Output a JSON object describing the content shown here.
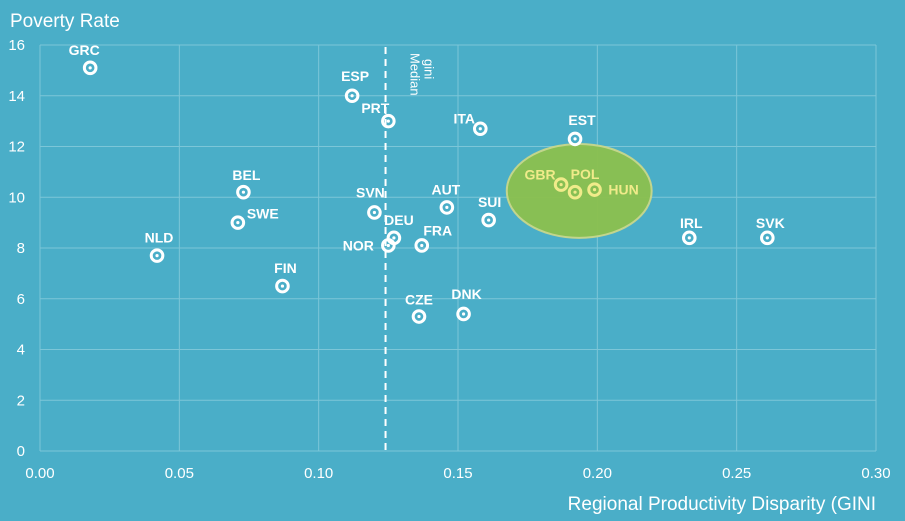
{
  "chart_data": {
    "type": "scatter",
    "title": "Poverty Rate",
    "xlabel": "Regional Productivity Disparity (GINI",
    "xlim": [
      0,
      0.3
    ],
    "ylim": [
      0,
      16
    ],
    "x_ticks": [
      "0.00",
      "0.05",
      "0.10",
      "0.15",
      "0.20",
      "0.25",
      "0.30"
    ],
    "y_ticks": [
      "0",
      "2",
      "4",
      "6",
      "8",
      "10",
      "12",
      "14",
      "16"
    ],
    "grid": true,
    "points": [
      {
        "label": "GRC",
        "x": 0.018,
        "y": 15.1
      },
      {
        "label": "NLD",
        "x": 0.042,
        "y": 7.7
      },
      {
        "label": "SWE",
        "x": 0.071,
        "y": 9.0
      },
      {
        "label": "BEL",
        "x": 0.073,
        "y": 10.2
      },
      {
        "label": "FIN",
        "x": 0.087,
        "y": 6.5
      },
      {
        "label": "ESP",
        "x": 0.112,
        "y": 14.0
      },
      {
        "label": "SVN",
        "x": 0.12,
        "y": 9.4
      },
      {
        "label": "PRT",
        "x": 0.125,
        "y": 13.0
      },
      {
        "label": "NOR",
        "x": 0.125,
        "y": 8.1
      },
      {
        "label": "DEU",
        "x": 0.127,
        "y": 8.4
      },
      {
        "label": "CZE",
        "x": 0.136,
        "y": 5.3
      },
      {
        "label": "FRA",
        "x": 0.137,
        "y": 8.1
      },
      {
        "label": "AUT",
        "x": 0.146,
        "y": 9.6
      },
      {
        "label": "DNK",
        "x": 0.152,
        "y": 5.4
      },
      {
        "label": "ITA",
        "x": 0.158,
        "y": 12.7
      },
      {
        "label": "SUI",
        "x": 0.161,
        "y": 9.1
      },
      {
        "label": "GBR",
        "x": 0.187,
        "y": 10.5,
        "highlight": true
      },
      {
        "label": "POL",
        "x": 0.192,
        "y": 10.2,
        "highlight": true
      },
      {
        "label": "EST",
        "x": 0.192,
        "y": 12.3
      },
      {
        "label": "HUN",
        "x": 0.199,
        "y": 10.3,
        "highlight": true
      },
      {
        "label": "IRL",
        "x": 0.233,
        "y": 8.4
      },
      {
        "label": "SVK",
        "x": 0.261,
        "y": 8.4
      }
    ],
    "median_line": {
      "x": 0.124,
      "label_line1": "Median",
      "label_line2": "gini"
    },
    "highlight_ellipse": {
      "cx": 0.1935,
      "cy": 10.25,
      "rx": 0.026,
      "ry": 1.85
    },
    "colors": {
      "background": "#4aaec8",
      "text": "#ffffff",
      "highlight_text": "#f0eb8a",
      "ellipse_fill": "#8cc04e",
      "ellipse_stroke": "#c9d88a",
      "grid": "#7cc6d8"
    }
  }
}
